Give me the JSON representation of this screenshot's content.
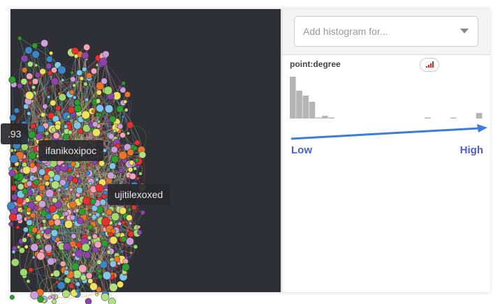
{
  "graph": {
    "labels": [
      ".93",
      "ifanikoxipoc",
      "ujitilexoxed"
    ],
    "node_colors": [
      "#e8742a",
      "#9fd86b",
      "#3a86c8",
      "#e83030",
      "#8e44ad",
      "#f5a3b8",
      "#7fc6e8",
      "#2ca02c",
      "#c9a0dc",
      "#f0e060",
      "#b0e080"
    ]
  },
  "panel": {
    "dropdown_placeholder": "Add histogram for...",
    "histogram": {
      "title": "point:degree",
      "bar_color": "#b5b5b5",
      "relative_heights": [
        60,
        40,
        33,
        24,
        1,
        4,
        1,
        0,
        0,
        0,
        0,
        0,
        0,
        0,
        0,
        0,
        0,
        0,
        0,
        0,
        0,
        1,
        0,
        0,
        0,
        1,
        0,
        0,
        0,
        8
      ],
      "scale_low": "Low",
      "scale_high": "High",
      "arrow_color": "#3b7ddd",
      "signal_icon_color": "#e82020"
    }
  }
}
